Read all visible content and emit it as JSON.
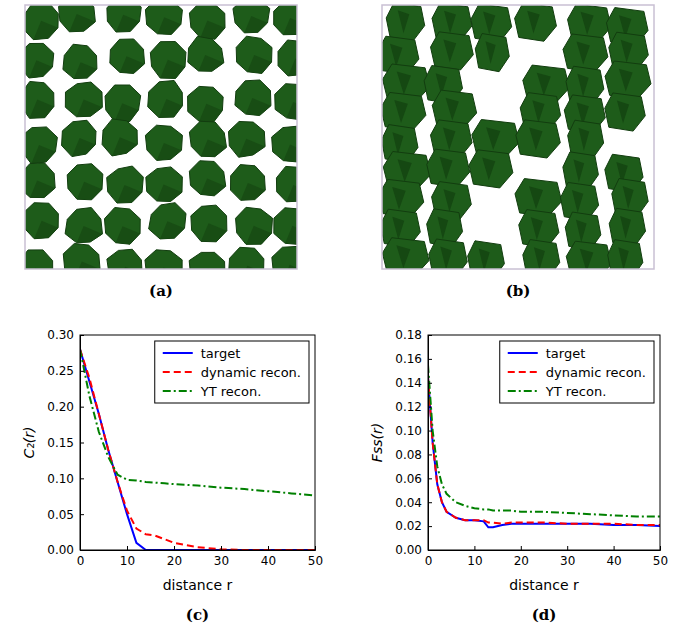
{
  "images": [
    {
      "caption": "(a)"
    },
    {
      "caption": "(b)"
    }
  ],
  "chart_data": [
    {
      "type": "line",
      "caption": "(c)",
      "x_label": "distance r",
      "y_label": "C₂(r)",
      "x": [
        0,
        2,
        4,
        6,
        8,
        10,
        12,
        14,
        16,
        18,
        20,
        25,
        30,
        35,
        40,
        45,
        50
      ],
      "series": [
        {
          "name": "target",
          "color": "#0000ff",
          "line_style": "solid",
          "values": [
            0.28,
            0.235,
            0.19,
            0.14,
            0.095,
            0.05,
            0.01,
            0,
            0,
            0,
            0,
            0,
            0,
            0,
            0,
            0,
            0
          ]
        },
        {
          "name": "dynamic recon.",
          "color": "#ff0000",
          "line_style": "dashed",
          "values": [
            0.28,
            0.24,
            0.19,
            0.14,
            0.095,
            0.055,
            0.03,
            0.022,
            0.02,
            0.015,
            0.01,
            0.004,
            0.001,
            0,
            0,
            0,
            0
          ]
        },
        {
          "name": "YT recon.",
          "color": "#008000",
          "line_style": "dashdot",
          "values": [
            0.28,
            0.215,
            0.165,
            0.13,
            0.105,
            0.098,
            0.097,
            0.095,
            0.094,
            0.093,
            0.092,
            0.09,
            0.087,
            0.085,
            0.082,
            0.079,
            0.076
          ]
        }
      ],
      "xlim": [
        0,
        50
      ],
      "ylim": [
        0,
        0.3
      ],
      "xticks": [
        0,
        10,
        20,
        30,
        40,
        50
      ],
      "yticks": [
        {
          "value": 0,
          "label": "0.00"
        },
        {
          "value": 0.05,
          "label": "0.05"
        },
        {
          "value": 0.1,
          "label": "0.10"
        },
        {
          "value": 0.15,
          "label": "0.15"
        },
        {
          "value": 0.2,
          "label": "0.20"
        },
        {
          "value": 0.25,
          "label": "0.25"
        },
        {
          "value": 0.3,
          "label": "0.30"
        }
      ],
      "legend": "upper right",
      "grid": false
    },
    {
      "type": "line",
      "caption": "(d)",
      "x_label": "distance r",
      "y_label": "Fss(r)",
      "x": [
        0,
        1,
        2,
        3,
        4,
        6,
        8,
        10,
        12,
        13,
        14,
        16,
        18,
        20,
        25,
        30,
        35,
        40,
        45,
        50
      ],
      "series": [
        {
          "name": "target",
          "color": "#0000ff",
          "line_style": "solid",
          "values": [
            0.145,
            0.09,
            0.055,
            0.04,
            0.032,
            0.027,
            0.025,
            0.025,
            0.024,
            0.019,
            0.019,
            0.021,
            0.022,
            0.022,
            0.022,
            0.022,
            0.022,
            0.021,
            0.021,
            0.02
          ]
        },
        {
          "name": "dynamic recon.",
          "color": "#ff0000",
          "line_style": "dashed",
          "values": [
            0.145,
            0.09,
            0.055,
            0.04,
            0.032,
            0.027,
            0.025,
            0.025,
            0.025,
            0.023,
            0.023,
            0.022,
            0.023,
            0.023,
            0.023,
            0.022,
            0.022,
            0.022,
            0.021,
            0.021
          ]
        },
        {
          "name": "YT recon.",
          "color": "#008000",
          "line_style": "dashdot",
          "values": [
            0.155,
            0.1,
            0.07,
            0.055,
            0.047,
            0.04,
            0.037,
            0.035,
            0.034,
            0.034,
            0.033,
            0.033,
            0.033,
            0.032,
            0.032,
            0.031,
            0.03,
            0.029,
            0.028,
            0.028
          ]
        }
      ],
      "xlim": [
        0,
        50
      ],
      "ylim": [
        0,
        0.18
      ],
      "xticks": [
        0,
        10,
        20,
        30,
        40,
        50
      ],
      "yticks": [
        {
          "value": 0,
          "label": "0.00"
        },
        {
          "value": 0.02,
          "label": "0.02"
        },
        {
          "value": 0.04,
          "label": "0.04"
        },
        {
          "value": 0.06,
          "label": "0.06"
        },
        {
          "value": 0.08,
          "label": "0.08"
        },
        {
          "value": 0.1,
          "label": "0.10"
        },
        {
          "value": 0.12,
          "label": "0.12"
        },
        {
          "value": 0.14,
          "label": "0.14"
        },
        {
          "value": 0.16,
          "label": "0.16"
        },
        {
          "value": 0.18,
          "label": "0.18"
        }
      ],
      "legend": "upper right",
      "grid": false
    }
  ]
}
